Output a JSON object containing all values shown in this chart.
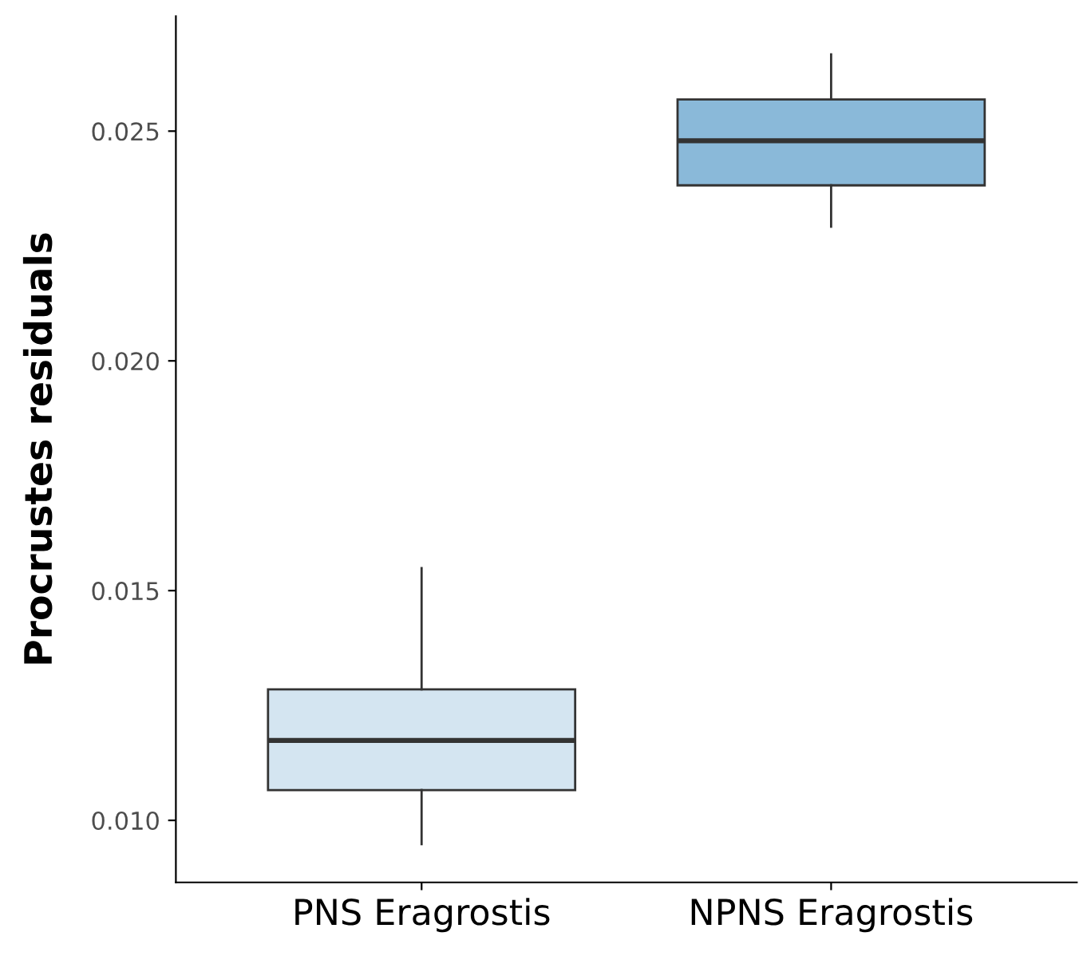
{
  "chart_data": {
    "type": "box",
    "ylabel": "Procrustes residuals",
    "categories": [
      "PNS Eragrostis",
      "NPNS Eragrostis"
    ],
    "boxes": [
      {
        "low": 0.00948,
        "q1": 0.01066,
        "median": 0.01174,
        "q3": 0.01285,
        "high": 0.01549
      },
      {
        "low": 0.02292,
        "q1": 0.02382,
        "median": 0.02479,
        "q3": 0.02569,
        "high": 0.02667
      }
    ],
    "colors": [
      "#d4e5f1",
      "#8ab9d9"
    ],
    "ylim": [
      0.00865,
      0.0275
    ],
    "yticks": [
      {
        "value": 0.01,
        "label": "0.010"
      },
      {
        "value": 0.015,
        "label": "0.015"
      },
      {
        "value": 0.02,
        "label": "0.020"
      },
      {
        "value": 0.025,
        "label": "0.025"
      }
    ],
    "grid": false,
    "legend": false
  }
}
